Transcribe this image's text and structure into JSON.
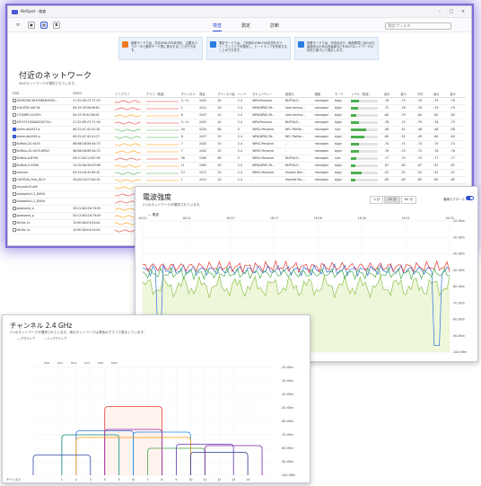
{
  "main_window": {
    "title": "NetSpot - 検査",
    "tabs": [
      {
        "label": "検査",
        "active": true
      },
      {
        "label": "測定",
        "active": false
      },
      {
        "label": "診断",
        "active": false
      }
    ],
    "search_placeholder": "測定/フィルタ",
    "banners": [
      {
        "text": "検査モードでは、付近のWi-Fiの状況を、主要なパラメータと動作モード別に表示することができます。",
        "icon": "info-orange"
      },
      {
        "text": "測定モードでは、ご利用中のWi-Fiの状況をサイト・マップ上で可視化し、ヒートマップを作成することができます。",
        "icon": "map-blue"
      },
      {
        "text": "診断モードでは、不具合点や、使用環境に合わせた最適化のための改善案などをWi-Fiネットワークの状況に基づいて提示します。",
        "icon": "diag-blue"
      }
    ],
    "heading": "付近のネットワーク",
    "subheading": "48のネットワークが選択されています。",
    "columns": [
      "SSID",
      "BSSID",
      "ミニグラフ",
      "グラフ（電波）",
      "チャンネル",
      "周波",
      "チャンネル幅",
      "バンド",
      "セキュリティー",
      "製造元",
      "種類",
      "モード",
      "レベル（電波）",
      "最大",
      "最小",
      "平均",
      "最大",
      "最小"
    ],
    "rows": [
      {
        "ssid": "050BC58C381FE8B4E9FA3...",
        "bssid": "CC:E1:D5:07:71:93",
        "channel": "5, +1",
        "freq": "2432",
        "width": "40",
        "band": "2.4",
        "security": "WPA-Personal",
        "vendor": "BUFFALO...",
        "kind": "managed",
        "mode": "b/g/n",
        "level": 0.3,
        "v1": "-76",
        "v2": "-75",
        "v3": "-76",
        "v4": "-79",
        "v5": "-76",
        "checked": false,
        "spark": "red"
      },
      {
        "ssid": "1040TBF-ADC36",
        "bssid": "84:25:3F:D8:98:81",
        "channel": "1",
        "freq": "2412",
        "width": "20",
        "band": "2.4",
        "security": "WPA/WPA2-Pe...",
        "vendor": "silex techno...",
        "kind": "managed",
        "mode": "b/g/n",
        "level": 0.25,
        "v1": "-72",
        "v2": "-78",
        "v3": "-76",
        "v4": "-79",
        "v5": "-79",
        "checked": false,
        "spark": "red"
      },
      {
        "ssid": "1705JMR-41S0F0",
        "bssid": "84:25:3F:A2:B8:91",
        "channel": "6",
        "freq": "2437",
        "width": "20",
        "band": "2.4",
        "security": "WPA/WPA2-Pe...",
        "vendor": "silex techno...",
        "kind": "managed",
        "mode": "b/g/n",
        "level": 0.2,
        "v1": "-80",
        "v2": "-79",
        "v3": "-80",
        "v4": "-82",
        "v5": "-80",
        "checked": false,
        "spark": "orange"
      },
      {
        "ssid": "AFF47475D8AED02704...",
        "bssid": "CC:E1:D5:07:71:90",
        "channel": "5, +1",
        "freq": "2432",
        "width": "40",
        "band": "2.4",
        "security": "WPA-Personal",
        "vendor": "BUFFALO...",
        "kind": "managed",
        "mode": "b/g/n",
        "level": 0.3,
        "v1": "-78",
        "v2": "-75",
        "v3": "-79",
        "v4": "-76",
        "v5": "-79",
        "checked": false,
        "spark": "red"
      },
      {
        "ssid": "aterm-db4347-a",
        "bssid": "80:22:A7:42:41:28",
        "channel": "44",
        "freq": "5220",
        "width": "80",
        "band": "5",
        "security": "WPA2-Personal",
        "vendor": "NEC Platfor...",
        "kind": "managed",
        "mode": "n/ac",
        "level": 0.55,
        "v1": "-58",
        "v2": "-51",
        "v3": "-48",
        "v4": "-58",
        "v5": "-58",
        "checked": true,
        "spark": "green"
      },
      {
        "ssid": "aterm-db4349-g",
        "bssid": "80:22:A7:42:41:37",
        "channel": "6",
        "freq": "2437",
        "width": "20",
        "band": "2.4",
        "security": "WPA/WPA2-Pe...",
        "vendor": "NEC Platfor...",
        "kind": "managed",
        "mode": "b/g/n",
        "level": 0.5,
        "v1": "-60",
        "v2": "-51",
        "v3": "-49",
        "v4": "-60",
        "v5": "-60",
        "checked": true,
        "spark": "green"
      },
      {
        "ssid": "Buffalo-2G-9A70",
        "bssid": "86:B8:CB:89:9A:73",
        "channel": "7",
        "freq": "2442",
        "width": "20",
        "band": "2.4",
        "security": "WPA2-Personal",
        "vendor": "-",
        "kind": "managed",
        "mode": "b/g/n",
        "level": 0.3,
        "v1": "-74",
        "v2": "-74",
        "v3": "-74",
        "v4": "-79",
        "v5": "-74",
        "checked": false,
        "spark": "orange"
      },
      {
        "ssid": "Buffalo-2G-9A70-WPA3",
        "bssid": "86:B8:CB:89:9A:70",
        "channel": "7",
        "freq": "2442",
        "width": "20",
        "band": "2.4",
        "security": "WPA3-Personal",
        "vendor": "-",
        "kind": "managed",
        "mode": "b/g/n",
        "level": 0.3,
        "v1": "-76",
        "v2": "-74",
        "v3": "-75",
        "v4": "-76",
        "v5": "-76",
        "checked": false,
        "spark": "orange"
      },
      {
        "ssid": "Buffalo-A-B706",
        "bssid": "E8:2C:A0:12:B7:06",
        "channel": "36",
        "freq": "5180",
        "width": "80",
        "band": "5",
        "security": "WPA2-Personal",
        "vendor": "BUFFALO...",
        "kind": "managed",
        "mode": "n/ac",
        "level": 0.2,
        "v1": "-77",
        "v2": "-72",
        "v3": "-73",
        "v4": "-77",
        "v5": "-77",
        "checked": false,
        "spark": "red"
      },
      {
        "ssid": "Buffalo-G-E998",
        "bssid": "CA:3C:8A:5B:E9:98",
        "channel": "11",
        "freq": "2462",
        "width": "20",
        "band": "2.4",
        "security": "WPA/WPA2-Pe...",
        "vendor": "BUFFALO...",
        "kind": "managed",
        "mode": "b/g/n",
        "level": 0.15,
        "v1": "-87",
        "v2": "-85",
        "v3": "-87",
        "v4": "-87",
        "v5": "-87",
        "checked": false,
        "spark": "orange"
      },
      {
        "ssid": "chansar",
        "bssid": "E0:19:1D:42:69:30",
        "channel": "13",
        "freq": "2472",
        "width": "20",
        "band": "2.4",
        "security": "WPA2-Personal",
        "vendor": "Huawei Dev...",
        "kind": "managed",
        "mode": "b/g/n",
        "level": 0.4,
        "v1": "-52",
        "v2": "-52",
        "v3": "-52",
        "v4": "-52",
        "v5": "-52",
        "checked": false,
        "spark": "green"
      },
      {
        "ssid": "CHIYODA_Free_Wi-Fi",
        "bssid": "9A:D5:34:07:60:30",
        "channel": "1",
        "freq": "2412",
        "width": "20",
        "band": "2.4",
        "security": "-",
        "vendor": "Hewlett Pac...",
        "kind": "managed",
        "mode": "b/g/n",
        "level": 0.15,
        "v1": "-85",
        "v2": "-83",
        "v3": "-85",
        "v4": "-85",
        "v5": "-85",
        "checked": false,
        "spark": "orange"
      },
      {
        "ssid": "chiyoda10-wifi",
        "bssid": "",
        "channel": "",
        "freq": "",
        "width": "",
        "band": "",
        "security": "",
        "vendor": "",
        "kind": "",
        "mode": "",
        "level": 0,
        "v1": "",
        "v2": "",
        "v3": "",
        "v4": "",
        "v5": "",
        "checked": false,
        "spark": "orange"
      },
      {
        "ssid": "dubase0a1-2_8G0N",
        "bssid": "",
        "channel": "",
        "freq": "",
        "width": "",
        "band": "",
        "security": "",
        "vendor": "",
        "kind": "",
        "mode": "",
        "level": 0,
        "v1": "",
        "v2": "",
        "v3": "",
        "v4": "",
        "v5": "",
        "checked": false,
        "spark": "red"
      },
      {
        "ssid": "dubase0a1-2_8G0N",
        "bssid": "",
        "channel": "",
        "freq": "",
        "width": "",
        "band": "",
        "security": "",
        "vendor": "",
        "kind": "",
        "mode": "",
        "level": 0,
        "v1": "",
        "v2": "",
        "v3": "",
        "v4": "",
        "v5": "",
        "checked": false,
        "spark": "red"
      },
      {
        "ssid": "goodsiero_a",
        "bssid": "50:C4:DD:1B:79:00",
        "channel": "",
        "freq": "",
        "width": "",
        "band": "",
        "security": "",
        "vendor": "",
        "kind": "",
        "mode": "",
        "level": 0,
        "v1": "",
        "v2": "",
        "v3": "",
        "v4": "",
        "v5": "",
        "checked": false,
        "spark": "orange"
      },
      {
        "ssid": "goodsiero_g",
        "bssid": "50:C4:DD:1B:79:09",
        "channel": "",
        "freq": "",
        "width": "",
        "band": "",
        "security": "",
        "vendor": "",
        "kind": "",
        "mode": "",
        "level": 0,
        "v1": "",
        "v2": "",
        "v3": "",
        "v4": "",
        "v5": "",
        "checked": false,
        "spark": "orange"
      },
      {
        "ssid": "Nfi-Na-1a",
        "bssid": "10:60:DA:E4:04:AC",
        "channel": "",
        "freq": "",
        "width": "",
        "band": "",
        "security": "",
        "vendor": "",
        "kind": "",
        "mode": "",
        "level": 0,
        "v1": "",
        "v2": "",
        "v3": "",
        "v4": "",
        "v5": "",
        "checked": false,
        "spark": "orange"
      },
      {
        "ssid": "Nfi-Na-1a",
        "bssid": "10:60:DA:E4:04:A0",
        "channel": "",
        "freq": "",
        "width": "",
        "band": "",
        "security": "",
        "vendor": "",
        "kind": "",
        "mode": "",
        "level": 0,
        "v1": "",
        "v2": "",
        "v3": "",
        "v4": "",
        "v5": "",
        "checked": false,
        "spark": "red"
      }
    ]
  },
  "signal_window": {
    "title": "電波強度",
    "subtitle": "2つのネットワークが選択されています。",
    "range_buttons": [
      {
        "label": "5 分",
        "active": false
      },
      {
        "label": "15 分",
        "active": true
      },
      {
        "label": "60 分",
        "active": false
      }
    ],
    "toggle_label": "離線スクロール",
    "toggle_on": true
  },
  "channel_window": {
    "title": "チャンネル 2.4 GHz",
    "subtitle": "2つのネットワークが選択されています。他のネットワークは薄色のグラフで表示しています。",
    "legend": [
      "アクティブ",
      "インアクティブ"
    ],
    "x_label": "チャンネル",
    "channels": [
      "1",
      "2",
      "3",
      "4",
      "5",
      "6",
      "7",
      "8",
      "9",
      "10",
      "11",
      "12",
      "13",
      "14"
    ]
  },
  "chart_data": [
    {
      "type": "line",
      "title": "電波強度",
      "ylabel": "",
      "ylim": [
        -100,
        -20
      ],
      "x_ticks": [
        "16:22",
        "16:24",
        "16:25",
        "16:27",
        "16:28",
        "16:30",
        "16:31",
        "16:33"
      ],
      "y_ticks": [
        "-20 dBm",
        "-30 dBm",
        "-40 dBm",
        "-50 dBm",
        "-60 dBm",
        "-70 dBm",
        "-80 dBm",
        "-90 dBm",
        "-100 dBm"
      ],
      "series": [
        {
          "name": "電波",
          "color": "#2f6fe0",
          "level": -50
        },
        {
          "color": "#e53935",
          "level": -48
        },
        {
          "color": "#4caf50",
          "level": -52
        },
        {
          "color": "#8bc34a",
          "level": -60
        }
      ]
    },
    {
      "type": "area",
      "title": "チャンネル 2.4 GHz",
      "x_ticks": [
        "1",
        "2",
        "3",
        "4",
        "5",
        "6",
        "7",
        "8",
        "9",
        "10",
        "11",
        "12",
        "13",
        "14"
      ],
      "top_labels": [
        "5G6",
        "6G1",
        "HG2",
        "GA7",
        "GK0",
        "MA0"
      ],
      "y_ticks": [
        "-20 dBm",
        "-30 dBm",
        "-40 dBm",
        "-50 dBm",
        "-60 dBm",
        "-70 dBm",
        "-80 dBm",
        "-90 dBm",
        "-100 dBm"
      ],
      "ylim": [
        -100,
        -20
      ],
      "series": [
        {
          "center": 6,
          "width": 4,
          "level": -49,
          "color": "#e53935",
          "fill": "#fff3ee"
        },
        {
          "center": 4,
          "width": 4,
          "level": -67,
          "color": "#2f6fe0"
        },
        {
          "center": 6,
          "width": 4,
          "level": -66,
          "color": "#8e24aa"
        },
        {
          "center": 3,
          "width": 4,
          "level": -70,
          "color": "#00897b"
        },
        {
          "center": 8,
          "width": 4,
          "level": -68,
          "color": "#1e88e5"
        },
        {
          "center": 6,
          "width": 8,
          "level": -72,
          "color": "#ff9800"
        },
        {
          "center": 9,
          "width": 4,
          "level": -80,
          "color": "#43a047"
        },
        {
          "center": 11,
          "width": 4,
          "level": -77,
          "color": "#5e35b1"
        },
        {
          "center": 1,
          "width": 4,
          "level": -85,
          "color": "#3949ab"
        },
        {
          "center": 13,
          "width": 4,
          "level": -78,
          "color": "#7b1fa2"
        },
        {
          "center": 12,
          "width": 4,
          "level": -83,
          "color": "#283593"
        }
      ]
    }
  ]
}
